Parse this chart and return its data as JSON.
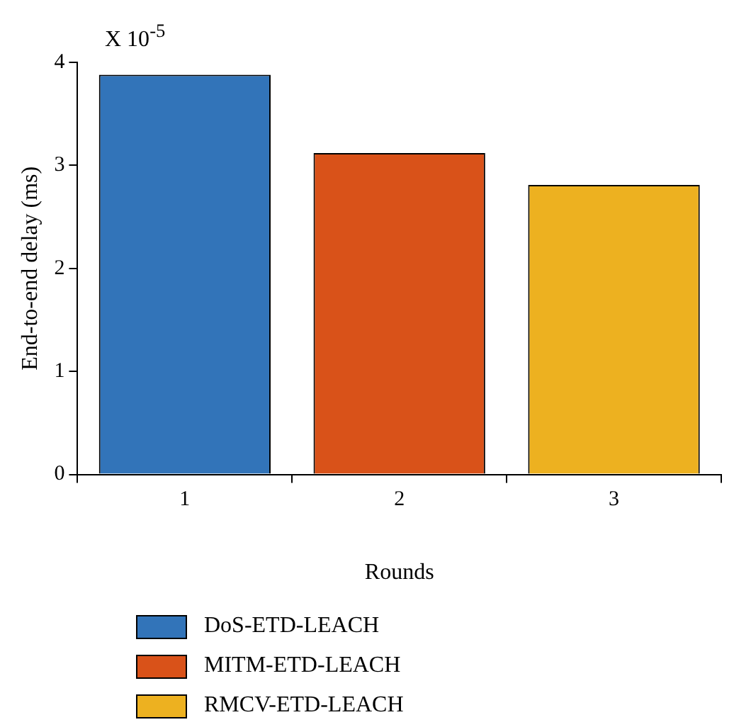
{
  "chart_data": {
    "type": "bar",
    "xlabel": "Rounds",
    "ylabel": "End-to-end delay (ms)",
    "annotations": [
      "X 10$^{-5}$"
    ],
    "categories": [
      "1",
      "2",
      "3"
    ],
    "series": [
      {
        "name": "DoS-ETD-LEACH",
        "color": "#3274b9",
        "values": [
          3.88,
          null,
          null
        ]
      },
      {
        "name": "MITM-ETD-LEACH",
        "color": "#d95219",
        "values": [
          null,
          3.12,
          null
        ]
      },
      {
        "name": "RMCV-ETD-LEACH",
        "color": "#edb120",
        "values": [
          null,
          null,
          2.81
        ]
      }
    ],
    "ylim": [
      0,
      4
    ],
    "yticks": [
      0,
      1,
      2,
      3,
      4
    ],
    "grid": false,
    "legend": "bottom"
  }
}
